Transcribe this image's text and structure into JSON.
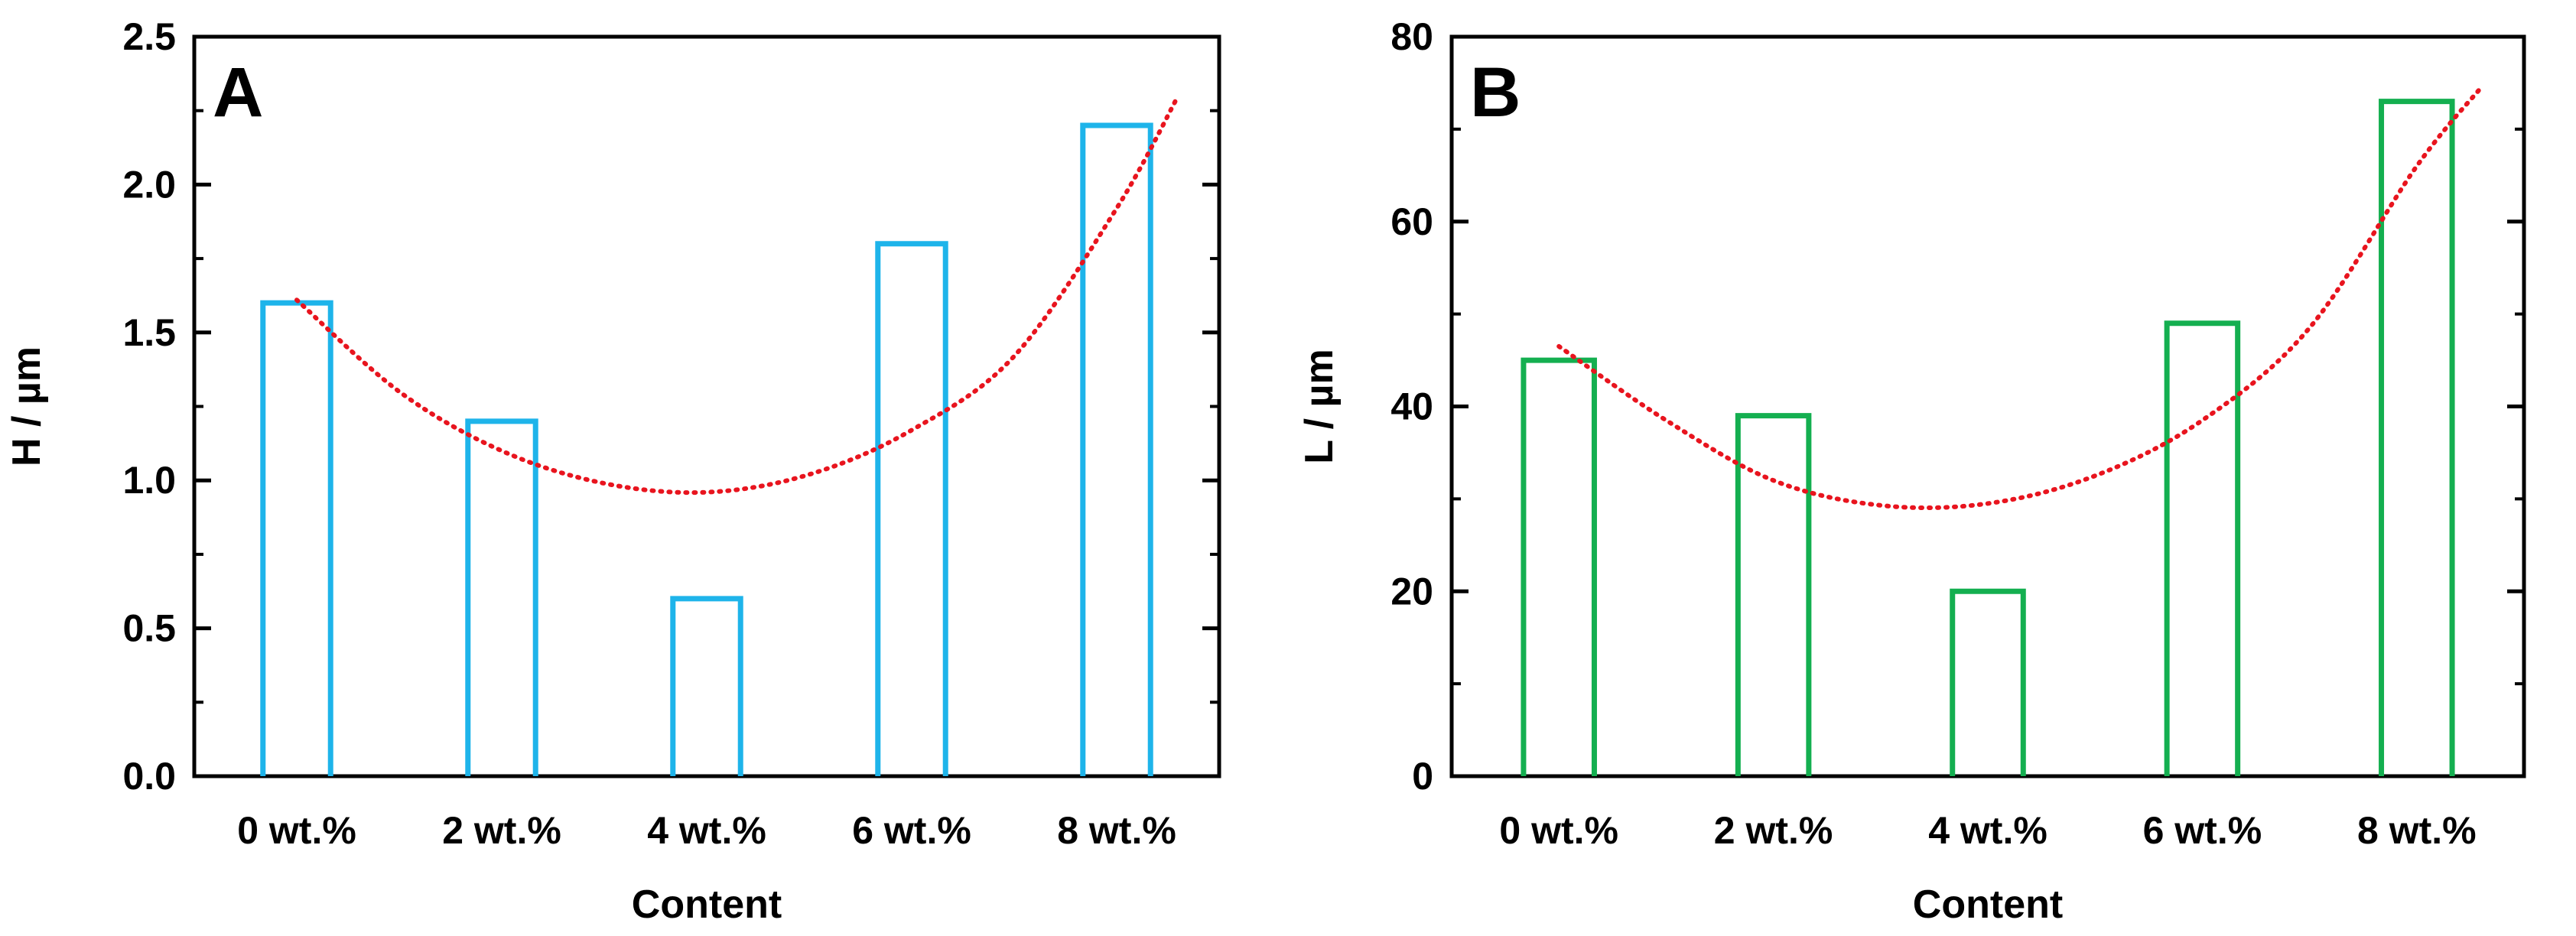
{
  "chart_data": [
    {
      "type": "bar",
      "panel_label": "A",
      "title": "",
      "xlabel": "Content",
      "ylabel": "H / µm",
      "categories": [
        "0 wt.%",
        "2 wt.%",
        "4 wt.%",
        "6 wt.%",
        "8 wt.%"
      ],
      "values": [
        1.6,
        1.2,
        0.6,
        1.8,
        2.2
      ],
      "ylim": [
        0,
        2.5
      ],
      "yticks": [
        0.0,
        0.5,
        1.0,
        1.5,
        2.0,
        2.5
      ],
      "ytick_labels": [
        "0.0",
        "0.5",
        "1.0",
        "1.5",
        "2.0",
        "2.5"
      ],
      "grid": false,
      "bar_style": "outline",
      "bar_color": "#1EB4EA",
      "trendline": {
        "type": "polynomial",
        "style": "dotted",
        "color": "#E8141E",
        "x": [
          0,
          0.5,
          1,
          1.5,
          2,
          2.5,
          3,
          3.5,
          4,
          4.3
        ],
        "y": [
          1.61,
          1.3,
          1.1,
          0.99,
          0.96,
          1.02,
          1.17,
          1.42,
          1.92,
          2.3
        ]
      }
    },
    {
      "type": "bar",
      "panel_label": "B",
      "title": "",
      "xlabel": "Content",
      "ylabel": "L / µm",
      "categories": [
        "0 wt.%",
        "2 wt.%",
        "4 wt.%",
        "6 wt.%",
        "8 wt.%"
      ],
      "values": [
        45,
        39,
        20,
        49,
        73
      ],
      "ylim": [
        0,
        80
      ],
      "yticks": [
        0,
        20,
        40,
        60,
        80
      ],
      "ytick_labels": [
        "0",
        "20",
        "40",
        "60",
        "80"
      ],
      "grid": false,
      "bar_style": "outline",
      "bar_color": "#14AF50",
      "trendline": {
        "type": "polynomial",
        "style": "dotted",
        "color": "#E8141E",
        "x": [
          0,
          0.5,
          1,
          1.5,
          2,
          2.5,
          3,
          3.5,
          4,
          4.3
        ],
        "y": [
          46.5,
          38.5,
          32.0,
          29.3,
          29.5,
          32.5,
          38.5,
          48.5,
          66.0,
          74.5
        ]
      }
    }
  ]
}
